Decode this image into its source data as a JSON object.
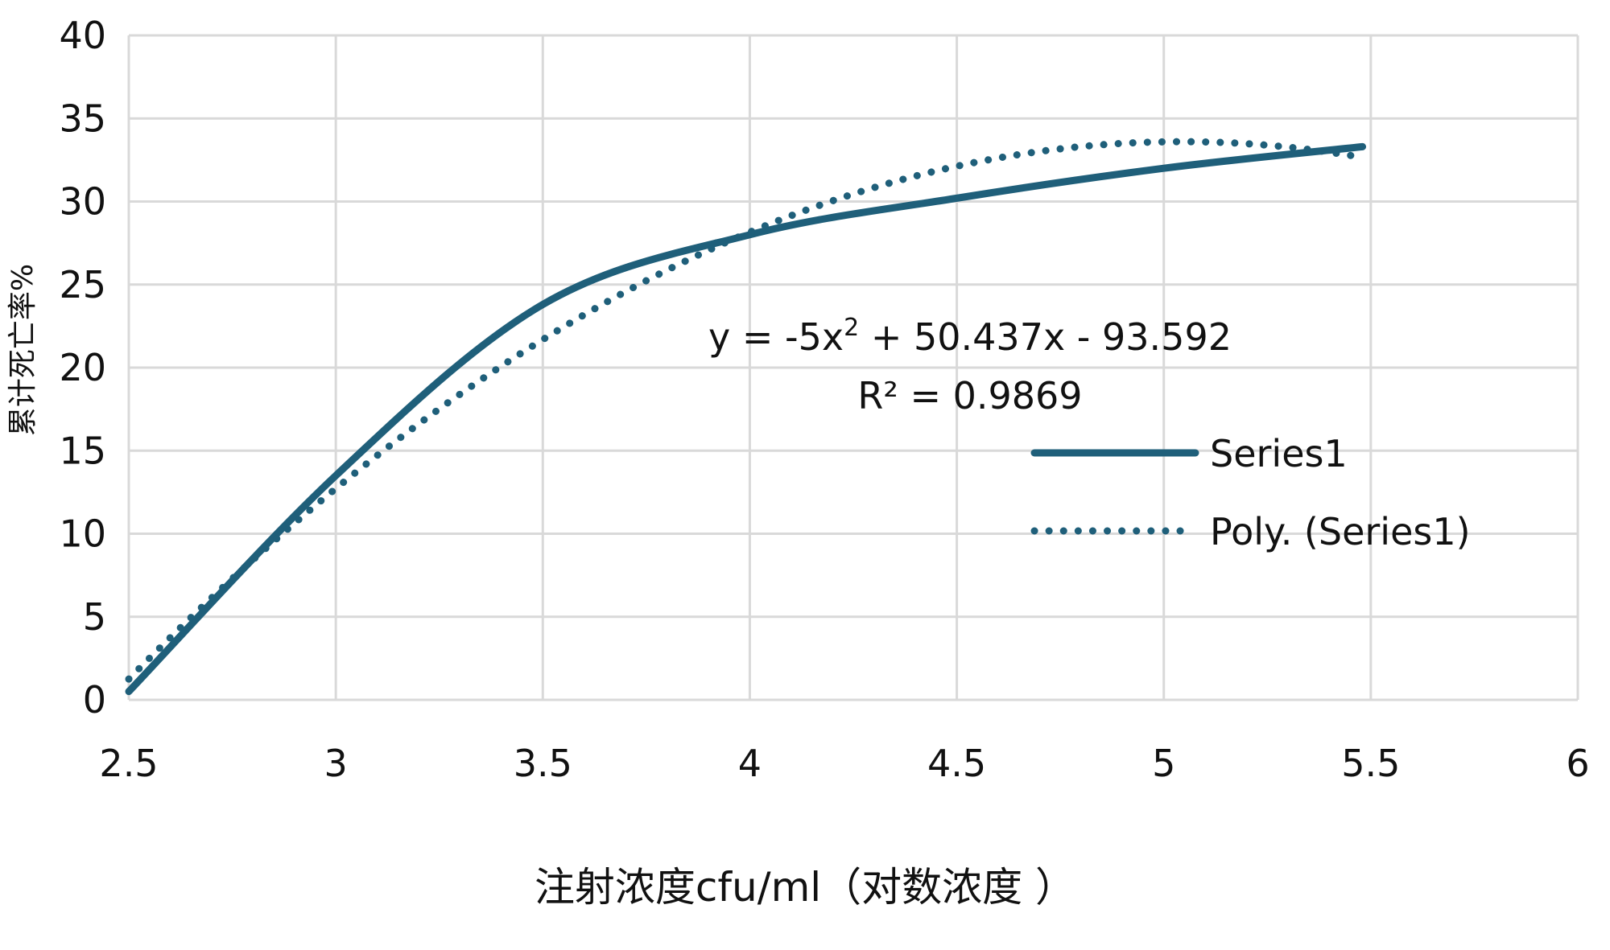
{
  "chart_data": {
    "type": "line",
    "xlabel": "注射浓度cfu/ml（对数浓度 ）",
    "ylabel": "累计死亡率%",
    "xlim": [
      2.5,
      6
    ],
    "ylim": [
      0,
      40
    ],
    "x_ticks": [
      "2.5",
      "3",
      "3.5",
      "4",
      "4.5",
      "5",
      "5.5",
      "6"
    ],
    "y_ticks": [
      "0",
      "5",
      "10",
      "15",
      "20",
      "25",
      "30",
      "35",
      "40"
    ],
    "grid": true,
    "legend_position": "right",
    "series": [
      {
        "name": "Series1",
        "style": "solid",
        "color": "#1f5f7a",
        "x": [
          2.5,
          3.0,
          3.5,
          4.0,
          4.5,
          5.0,
          5.48
        ],
        "y": [
          0.5,
          13.5,
          23.8,
          28.0,
          30.2,
          32.0,
          33.3
        ]
      },
      {
        "name": "Poly. (Series1)",
        "style": "dotted",
        "color": "#1f5f7a",
        "fit": {
          "a": -5,
          "b": 50.437,
          "c": -93.592,
          "x_range": [
            2.5,
            5.48
          ]
        }
      }
    ],
    "annotations": {
      "equation_prefix": "y = -5x",
      "equation_sup": "2",
      "equation_suffix": " + 50.437x - 93.592",
      "r2_text": "R² = 0.9869"
    }
  }
}
